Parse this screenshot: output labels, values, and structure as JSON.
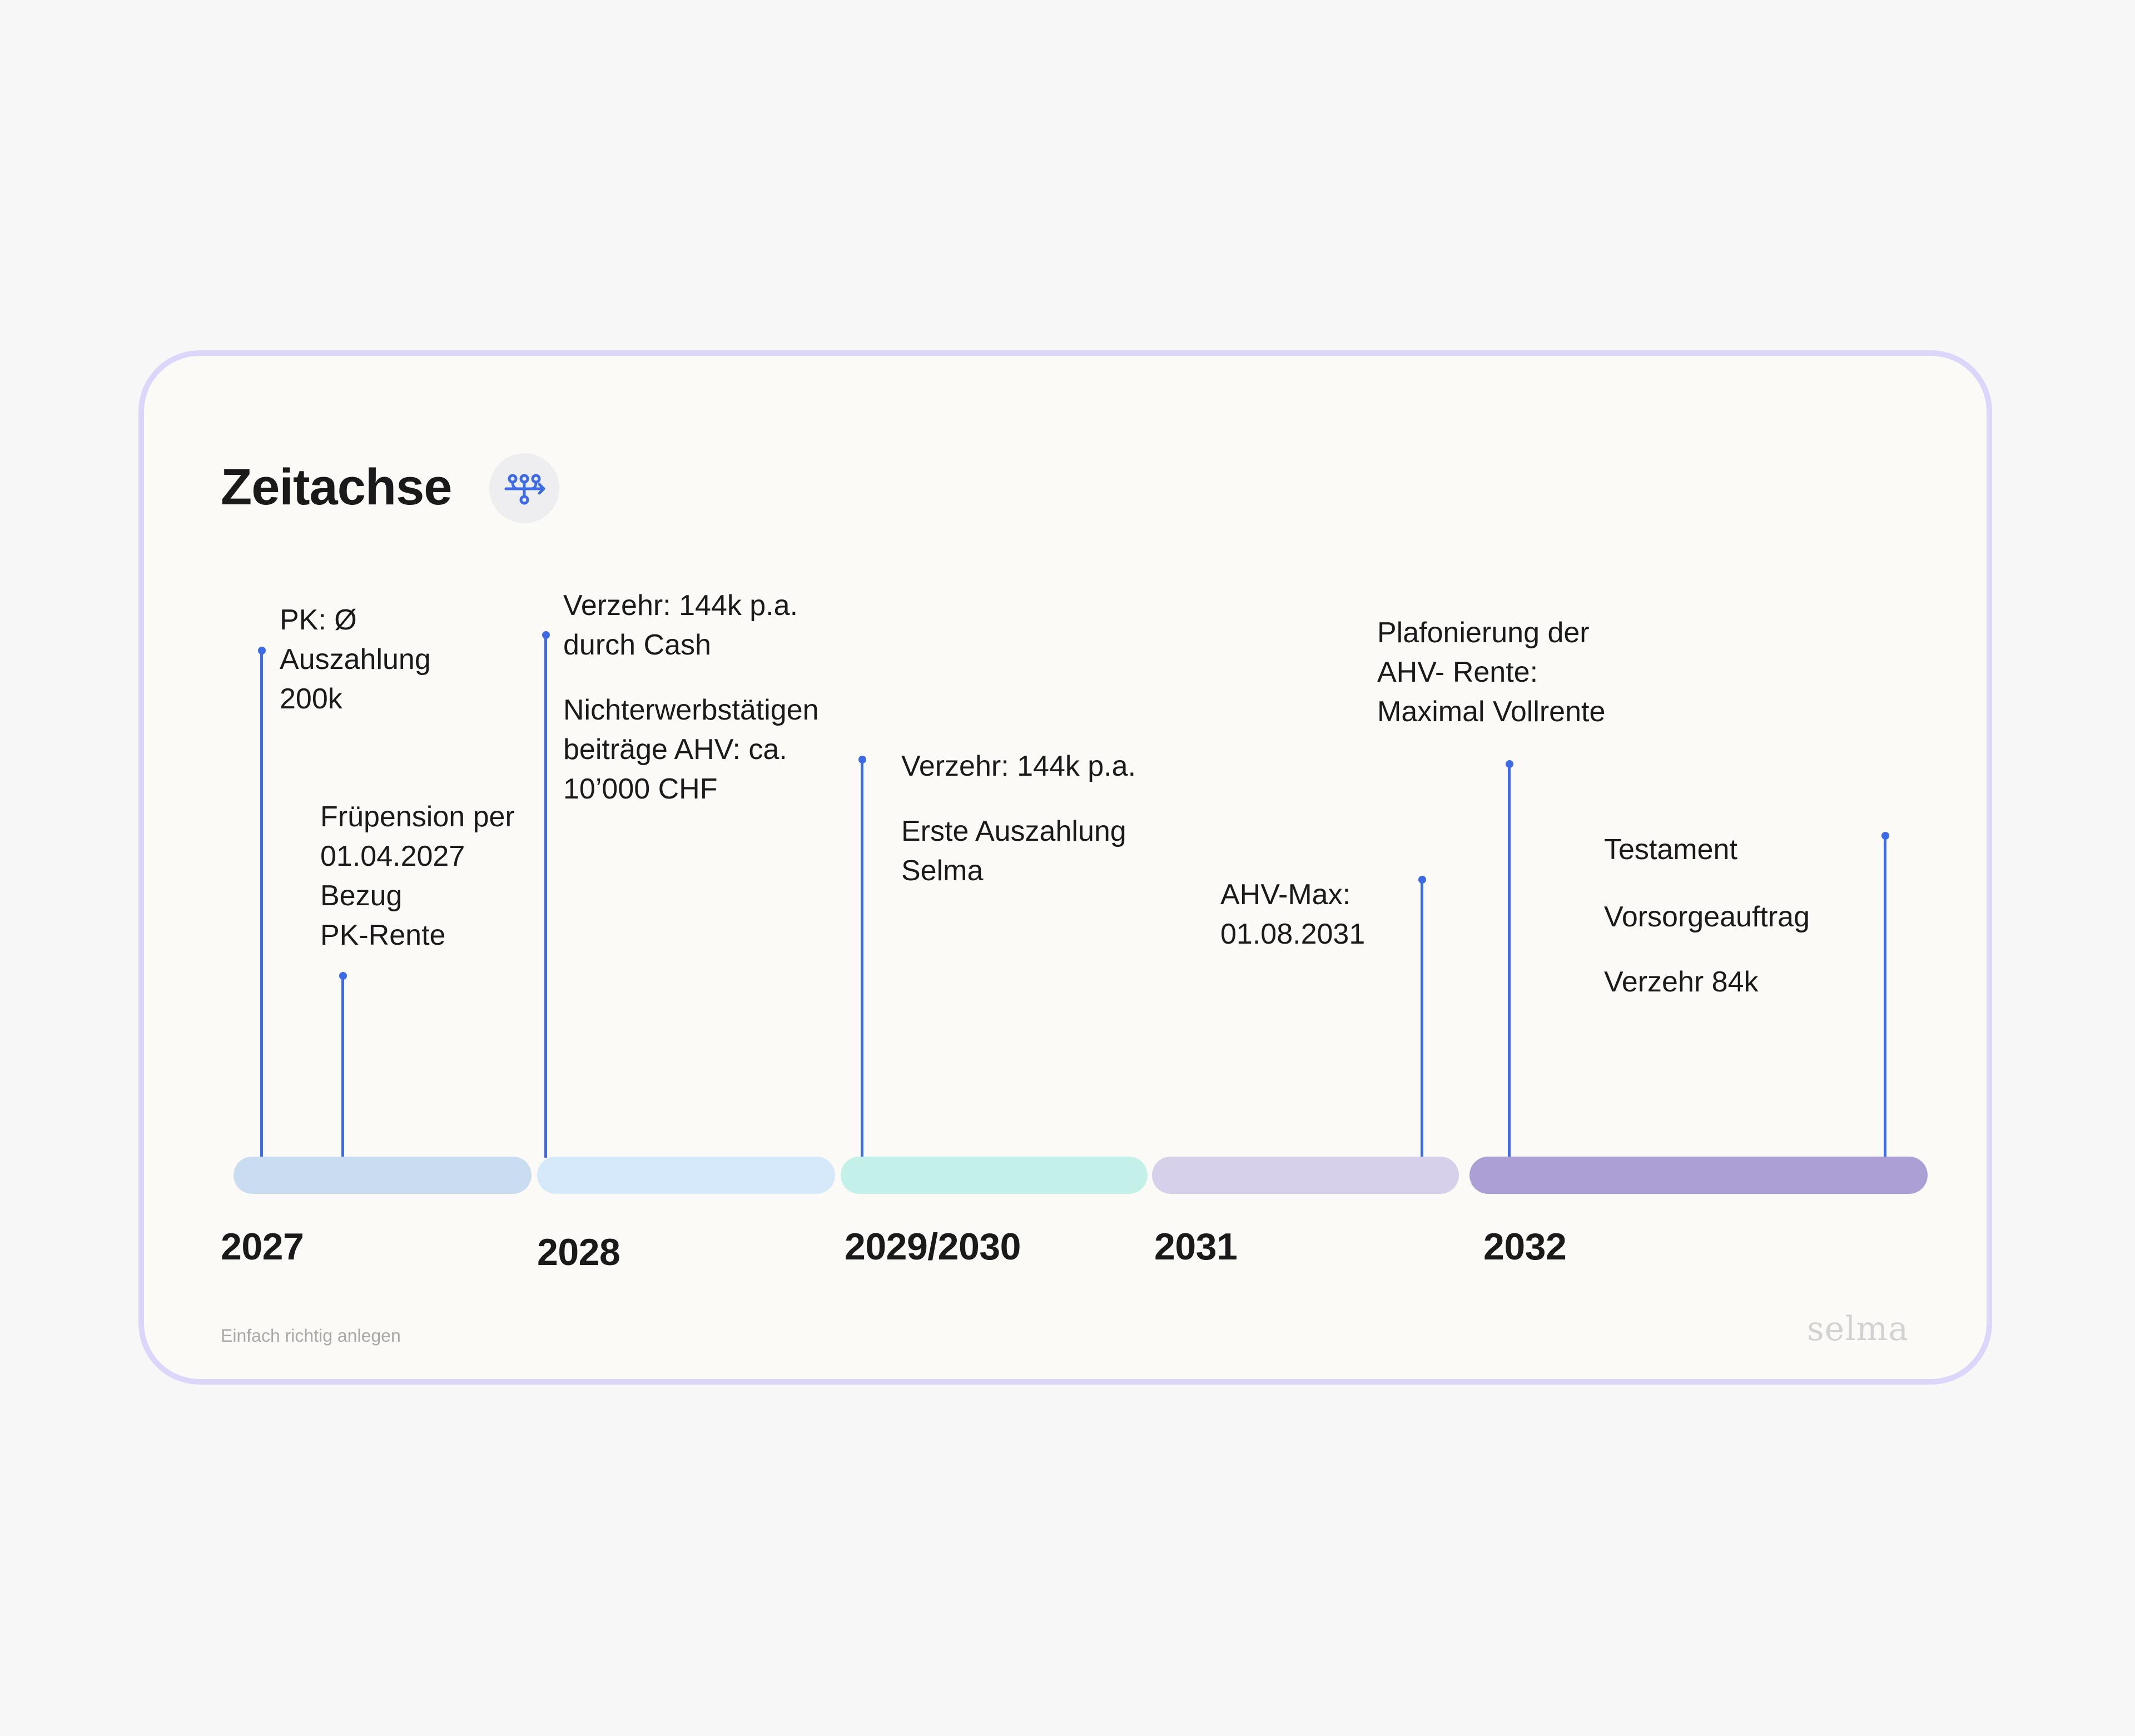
{
  "title": "Zeitachse",
  "title_icon": "timeline-flow-icon",
  "colors": {
    "card_border": "#ddd6fb",
    "card_background": "#fbfaf7",
    "stem": "#3d6be6",
    "bar_2027": "#c9dcf0",
    "bar_2028": "#d5e9fb",
    "bar_2029_2030": "#c3f1e9",
    "bar_2031": "#d6d0ea",
    "bar_2032": "#ab9fd6"
  },
  "years": [
    "2027",
    "2028",
    "2029/2030",
    "2031",
    "2032"
  ],
  "events": {
    "pk_auszahlung": [
      "PK: Ø",
      "Auszahlung",
      "200k"
    ],
    "fruehpension": [
      "Früpension per",
      "01.04.2027",
      "Bezug",
      "PK-Rente"
    ],
    "verzehr_cash": [
      "Verzehr: 144k p.a.",
      "durch Cash"
    ],
    "nichterwerbstaetigen": [
      "Nichterwerbstätigen",
      "beiträge AHV: ca.",
      "10’000 CHF"
    ],
    "verzehr_2029": [
      "Verzehr: 144k p.a."
    ],
    "erste_auszahlung": [
      "Erste Auszahlung",
      "Selma"
    ],
    "ahv_max": [
      "AHV-Max:",
      "01.08.2031"
    ],
    "plafonierung": [
      "Plafonierung der",
      "AHV- Rente:",
      "Maximal Vollrente"
    ],
    "testament": [
      "Testament"
    ],
    "vorsorgeauftrag": [
      "Vorsorgeauftrag"
    ],
    "verzehr_84k": [
      "Verzehr 84k"
    ]
  },
  "footer": {
    "tagline": "Einfach richtig anlegen",
    "logo": "selma"
  }
}
